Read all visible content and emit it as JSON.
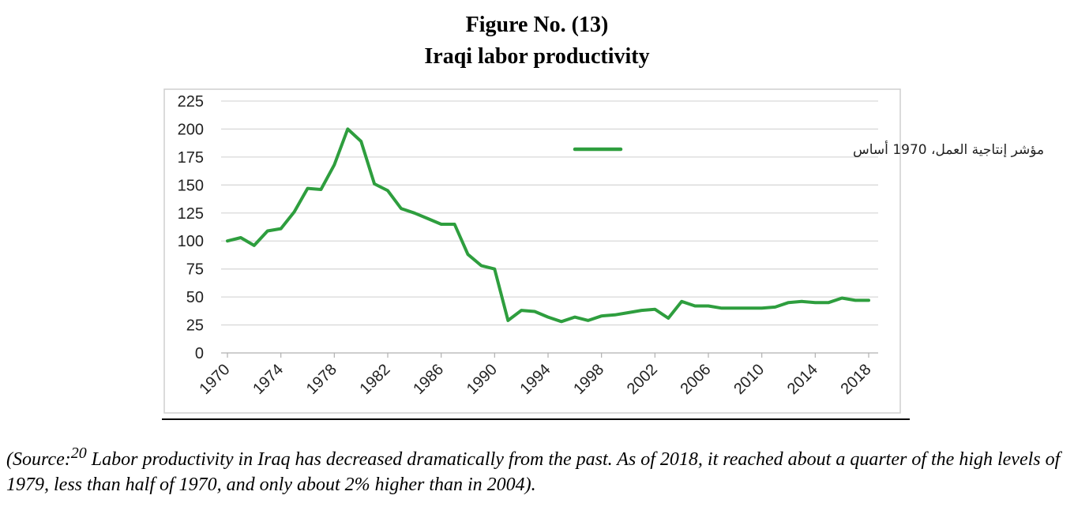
{
  "figure": {
    "number": "Figure No. (13)",
    "title": "Iraqi labor productivity"
  },
  "caption": {
    "prefix": "(Source:",
    "superscript": "20",
    "text": " Labor productivity in Iraq has decreased dramatically from the past. As of 2018, it reached about a quarter of the high levels of 1979, less than half of 1970, and only about 2% higher than in 2004)."
  },
  "colors": {
    "series": "#2e9e3e",
    "grid": "#d9d9d9",
    "frame": "#cfcfcf",
    "axis": "#b0b0b0"
  },
  "chart_data": {
    "type": "line",
    "title": "",
    "xlabel": "",
    "ylabel": "",
    "xlim": [
      1970,
      2018
    ],
    "ylim": [
      0,
      225
    ],
    "y_ticks": [
      0,
      25,
      50,
      75,
      100,
      125,
      150,
      175,
      200,
      225
    ],
    "x_ticks": [
      1970,
      1974,
      1978,
      1982,
      1986,
      1990,
      1994,
      1998,
      2002,
      2006,
      2010,
      2014,
      2018
    ],
    "grid": true,
    "legend_position": "top-right",
    "series": [
      {
        "name": "مؤشر إنتاجية العمل، 1970 أساس",
        "x": [
          1970,
          1971,
          1972,
          1973,
          1974,
          1975,
          1976,
          1977,
          1978,
          1979,
          1980,
          1981,
          1982,
          1983,
          1984,
          1985,
          1986,
          1987,
          1988,
          1989,
          1990,
          1991,
          1992,
          1993,
          1994,
          1995,
          1996,
          1997,
          1998,
          1999,
          2000,
          2001,
          2002,
          2003,
          2004,
          2005,
          2006,
          2007,
          2008,
          2009,
          2010,
          2011,
          2012,
          2013,
          2014,
          2015,
          2016,
          2017,
          2018
        ],
        "values": [
          100,
          103,
          96,
          109,
          111,
          126,
          147,
          146,
          168,
          200,
          189,
          151,
          145,
          129,
          125,
          120,
          115,
          115,
          88,
          78,
          75,
          29,
          38,
          37,
          32,
          28,
          32,
          29,
          33,
          34,
          36,
          38,
          39,
          31,
          46,
          42,
          42,
          40,
          40,
          40,
          40,
          41,
          45,
          46,
          45,
          45,
          49,
          47,
          47
        ]
      }
    ]
  }
}
